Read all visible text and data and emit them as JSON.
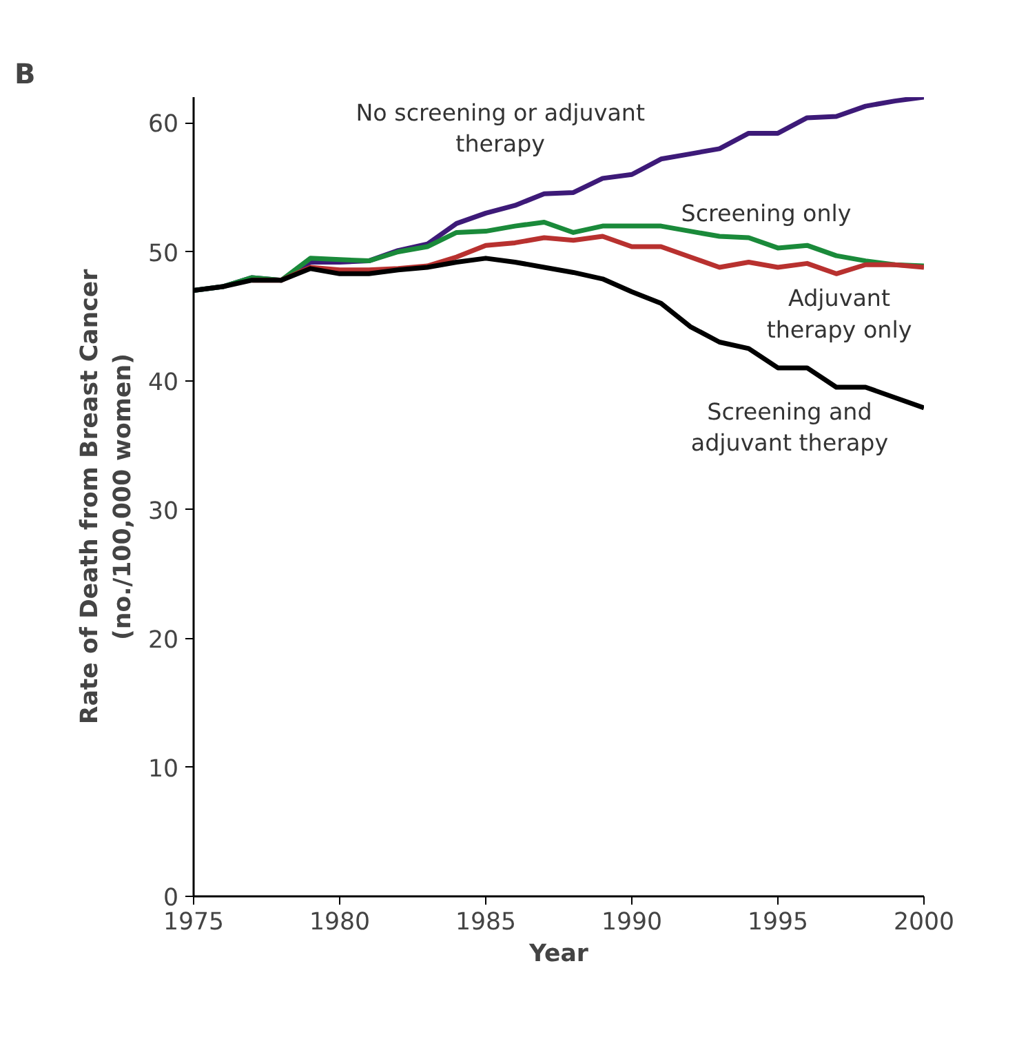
{
  "chart_data": {
    "type": "line",
    "title": "B",
    "xlabel": "Year",
    "ylabel": "Rate of Death from Breast Cancer\n(no./100,000 women)",
    "x": [
      1975,
      1976,
      1977,
      1978,
      1979,
      1980,
      1981,
      1982,
      1983,
      1984,
      1985,
      1986,
      1987,
      1988,
      1989,
      1990,
      1991,
      1992,
      1993,
      1994,
      1995,
      1996,
      1997,
      1998,
      1999,
      2000
    ],
    "series": [
      {
        "name": "No screening or adjuvant therapy",
        "color": "#3d1a78",
        "values": [
          47,
          47.3,
          48,
          47.8,
          49.2,
          49.2,
          49.3,
          50.1,
          50.6,
          52.2,
          53.0,
          53.6,
          54.5,
          54.6,
          55.7,
          56.0,
          57.2,
          57.6,
          58.0,
          59.2,
          59.2,
          60.4,
          60.5,
          61.3,
          61.7,
          62.0
        ]
      },
      {
        "name": "Screening only",
        "color": "#1a8a3a",
        "values": [
          47,
          47.3,
          48,
          47.8,
          49.5,
          49.4,
          49.3,
          50.0,
          50.4,
          51.5,
          51.6,
          52.0,
          52.3,
          51.5,
          52.0,
          52.0,
          52.0,
          51.6,
          51.2,
          51.1,
          50.3,
          50.5,
          49.7,
          49.3,
          49.0,
          48.9
        ]
      },
      {
        "name": "Adjuvant therapy only",
        "color": "#b8312f",
        "values": [
          null,
          null,
          47.8,
          47.8,
          48.8,
          48.6,
          48.6,
          48.7,
          48.9,
          49.6,
          50.5,
          50.7,
          51.1,
          50.9,
          51.2,
          50.4,
          50.4,
          49.6,
          48.8,
          49.2,
          48.8,
          49.1,
          48.3,
          49.0,
          49.0,
          48.8
        ]
      },
      {
        "name": "Screening and adjuvant therapy",
        "color": "#000000",
        "values": [
          47,
          47.3,
          47.8,
          47.8,
          48.7,
          48.3,
          48.3,
          48.6,
          48.8,
          49.2,
          49.5,
          49.2,
          48.8,
          48.4,
          47.9,
          46.9,
          46.0,
          44.2,
          43.0,
          42.5,
          41.0,
          41.0,
          39.5,
          39.5,
          38.7,
          37.9
        ]
      }
    ],
    "xlim": [
      1975,
      2000
    ],
    "xticks": [
      1975,
      1980,
      1985,
      1990,
      1995,
      2000
    ],
    "ylim": [
      0,
      62
    ],
    "yticks": [
      0,
      10,
      20,
      30,
      40,
      50,
      60
    ],
    "grid": false,
    "legend": false,
    "marker": "none",
    "line_style": "solid"
  }
}
